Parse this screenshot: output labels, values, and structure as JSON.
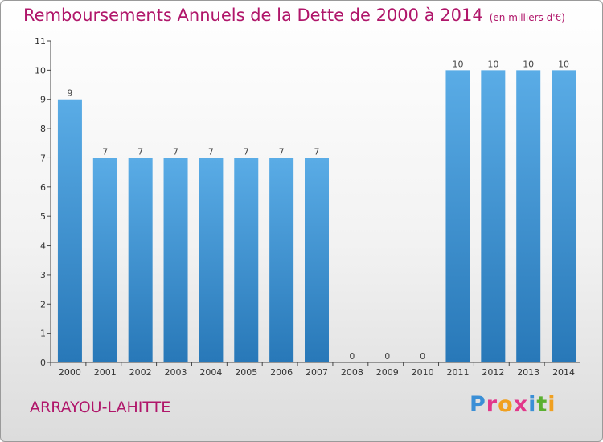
{
  "chart_data": {
    "type": "bar",
    "title": "Remboursements Annuels de la Dette de 2000 à 2014",
    "unit_note": "(en milliers d'€)",
    "categories": [
      "2000",
      "2001",
      "2002",
      "2003",
      "2004",
      "2005",
      "2006",
      "2007",
      "2008",
      "2009",
      "2010",
      "2011",
      "2012",
      "2013",
      "2014"
    ],
    "values": [
      9,
      7,
      7,
      7,
      7,
      7,
      7,
      7,
      0,
      0,
      0,
      10,
      10,
      10,
      10
    ],
    "ylim": [
      0,
      11
    ],
    "yticks": [
      0,
      1,
      2,
      3,
      4,
      5,
      6,
      7,
      8,
      9,
      10,
      11
    ],
    "grid": false,
    "bar_color_top": "#5aace6",
    "bar_color_bottom": "#2878b8"
  },
  "footer": {
    "city": "ARRAYOU-LAHITTE",
    "logo_text": "Proxiti",
    "logo_colors": [
      "#3a8fd6",
      "#e2388a",
      "#f0a020",
      "#e2388a",
      "#3a8fd6",
      "#5ab030",
      "#f0a020"
    ]
  }
}
